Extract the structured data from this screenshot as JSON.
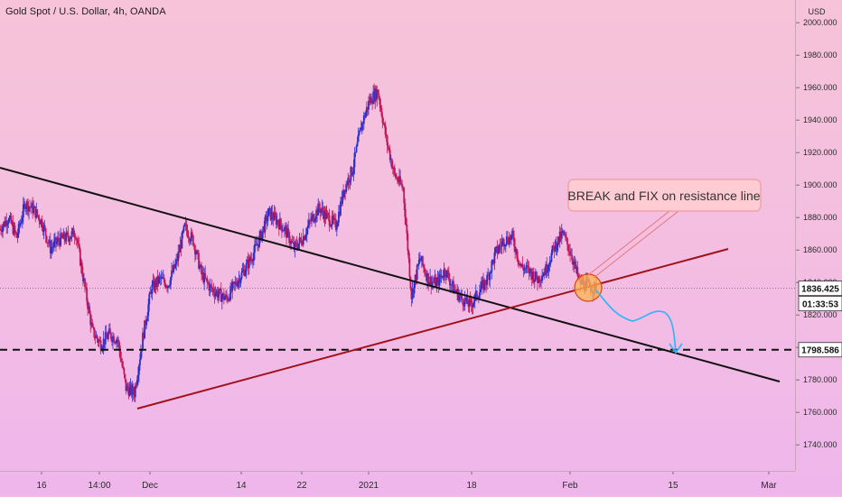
{
  "header": {
    "symbol_title": "Gold Spot / U.S. Dollar, 4h, OANDA",
    "currency": "USD"
  },
  "chart_data": {
    "type": "line",
    "price_ticks": [
      1740,
      1760,
      1780,
      1800,
      1820,
      1840,
      1860,
      1880,
      1900,
      1920,
      1940,
      1960,
      1980,
      2000
    ],
    "price_tick_labels": [
      "1740.000",
      "1760.000",
      "1780.000",
      "1800.000",
      "1820.000",
      "1840.000",
      "1860.000",
      "1880.000",
      "1900.000",
      "1920.000",
      "1940.000",
      "1960.000",
      "1980.000",
      "2000.000"
    ],
    "time_ticks": [
      "16",
      "14:00",
      "Dec",
      "14",
      "22",
      "2021",
      "18",
      "Feb",
      "15",
      "Mar"
    ],
    "ylim": [
      1724,
      2014
    ],
    "x_range_days": [
      -4,
      33
    ],
    "price_series": {
      "color": "#2c2ec8",
      "x_days": [
        -4,
        -3,
        -2,
        -1,
        0,
        1,
        2,
        3,
        4,
        5,
        6,
        7,
        8,
        9,
        10,
        11,
        12,
        13,
        14,
        15,
        16,
        17,
        18,
        19,
        20,
        21,
        22,
        23,
        24,
        25,
        26,
        27,
        28,
        29,
        30,
        31,
        32,
        33,
        34,
        35,
        36,
        37,
        38,
        39,
        40,
        41,
        42,
        43,
        44,
        45,
        46,
        47,
        48,
        49,
        50,
        51,
        52,
        53,
        54,
        55,
        56,
        57,
        58,
        59,
        60,
        61,
        62,
        63,
        64,
        65,
        66,
        67
      ],
      "close": [
        1873,
        1880,
        1868,
        1889,
        1885,
        1877,
        1861,
        1866,
        1868,
        1871,
        1840,
        1810,
        1802,
        1808,
        1805,
        1775,
        1772,
        1806,
        1836,
        1842,
        1839,
        1852,
        1874,
        1866,
        1845,
        1837,
        1833,
        1830,
        1839,
        1847,
        1856,
        1868,
        1883,
        1878,
        1872,
        1861,
        1867,
        1878,
        1886,
        1880,
        1875,
        1898,
        1910,
        1936,
        1952,
        1958,
        1928,
        1906,
        1898,
        1832,
        1855,
        1842,
        1839,
        1848,
        1836,
        1830,
        1826,
        1834,
        1842,
        1858,
        1866,
        1868,
        1850,
        1847,
        1842,
        1848,
        1862,
        1870,
        1858,
        1840,
        1838,
        1836
      ]
    },
    "current_price": "1836.425",
    "countdown": "01:33:53",
    "support_level": "1798.586",
    "annotation": "BREAK and FIX on resistance line",
    "lines": {
      "black_trendline": {
        "color": "#111111",
        "points": [
          [
            -4,
            1909
          ],
          [
            37,
            1781
          ]
        ]
      },
      "red_trendline": {
        "color": "#a0121a",
        "points": [
          [
            11,
            1765
          ],
          [
            34,
            1861
          ]
        ]
      },
      "support_dashed": {
        "color": "#111111",
        "value": 1798.586
      },
      "projection": {
        "color": "#29b6f6",
        "points": [
          [
            23.5,
            1838
          ],
          [
            25,
            1824
          ],
          [
            27.5,
            1828
          ],
          [
            28.8,
            1812
          ],
          [
            29.4,
            1803
          ]
        ]
      }
    }
  }
}
